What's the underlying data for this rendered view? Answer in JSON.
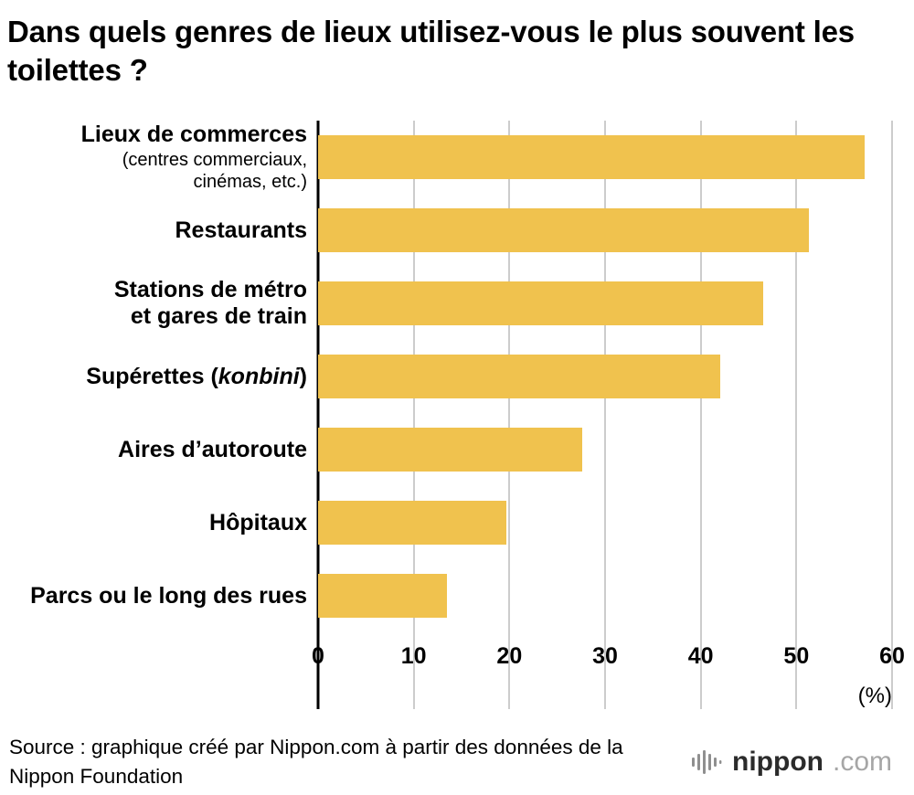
{
  "title": "Dans quels genres de lieux utilisez-vous le plus souvent les toilettes ?",
  "chart_data": {
    "type": "bar",
    "orientation": "horizontal",
    "title": "Dans quels genres de lieux utilisez-vous le plus souvent les toilettes ?",
    "categories": [
      {
        "name": "Lieux de commerces (centres commerciaux, cinémas, etc.)",
        "lines": [
          {
            "segments": [
              {
                "text": "Lieux de commerces"
              }
            ]
          },
          {
            "small": true,
            "segments": [
              {
                "text": "(centres commerciaux,"
              }
            ]
          },
          {
            "small": true,
            "segments": [
              {
                "text": "cinémas, etc.)"
              }
            ]
          }
        ]
      },
      {
        "name": "Restaurants",
        "lines": [
          {
            "segments": [
              {
                "text": "Restaurants"
              }
            ]
          }
        ]
      },
      {
        "name": "Stations de métro et gares de train",
        "lines": [
          {
            "segments": [
              {
                "text": "Stations de métro"
              }
            ]
          },
          {
            "segments": [
              {
                "text": "et gares de train"
              }
            ]
          }
        ]
      },
      {
        "name": "Supérettes (konbini)",
        "lines": [
          {
            "segments": [
              {
                "text": "Supérettes ("
              },
              {
                "text": "konbini",
                "italic": true
              },
              {
                "text": ")"
              }
            ]
          }
        ]
      },
      {
        "name": "Aires d’autoroute",
        "lines": [
          {
            "segments": [
              {
                "text": "Aires d’autoroute"
              }
            ]
          }
        ]
      },
      {
        "name": "Hôpitaux",
        "lines": [
          {
            "segments": [
              {
                "text": "Hôpitaux"
              }
            ]
          }
        ]
      },
      {
        "name": "Parcs ou le long des rues",
        "lines": [
          {
            "segments": [
              {
                "text": "Parcs ou le long des rues"
              }
            ]
          }
        ]
      }
    ],
    "values": [
      57.1,
      51.3,
      46.5,
      42.0,
      27.6,
      19.7,
      13.5
    ],
    "xlim": [
      0,
      60
    ],
    "xticks": [
      0,
      10,
      20,
      30,
      40,
      50,
      60
    ],
    "unit_label": "(%)",
    "bar_color": "#F0C24E",
    "grid": true,
    "legend": "none"
  },
  "footer": {
    "source_text": "Source : graphique créé par Nippon.com à partir des données de la Nippon Foundation",
    "logo": {
      "brand": "nippon",
      "tld": ".com"
    }
  }
}
